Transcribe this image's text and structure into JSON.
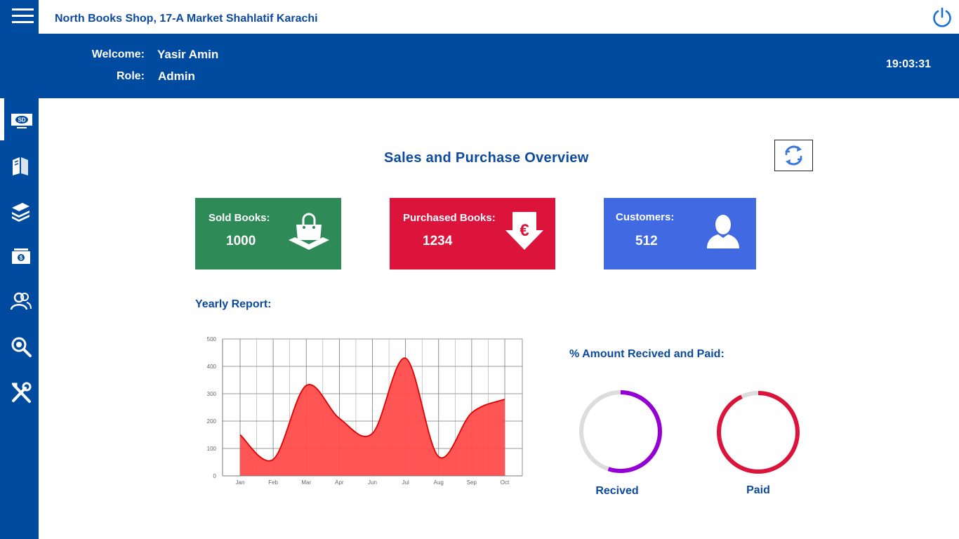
{
  "header": {
    "shop_title": "North Books Shop, 17-A Market Shahlatif Karachi",
    "welcome_label": "Welcome:",
    "welcome_value": "Yasir Amin",
    "role_label": "Role:",
    "role_value": "Admin",
    "clock": "19:03:31"
  },
  "sidebar": {
    "items": [
      {
        "icon": "sales-dashboard-icon"
      },
      {
        "icon": "books-icon"
      },
      {
        "icon": "book-stack-icon"
      },
      {
        "icon": "money-icon"
      },
      {
        "icon": "users-icon"
      },
      {
        "icon": "search-icon"
      },
      {
        "icon": "tools-icon"
      }
    ]
  },
  "main": {
    "title": "Sales and Purchase Overview",
    "cards": [
      {
        "label": "Sold Books:",
        "value": "1000",
        "color": "#2e8b57",
        "icon": "shopping-bag-icon"
      },
      {
        "label": "Purchased Books:",
        "value": "1234",
        "color": "#dc143c",
        "icon": "euro-down-arrow-icon"
      },
      {
        "label": "Customers:",
        "value": "512",
        "color": "#4169e1",
        "icon": "user-icon"
      }
    ],
    "yearly_label": "Yearly Report:",
    "percent_label": "% Amount Recived and Paid:",
    "rings": [
      {
        "label": "Recived",
        "fraction": 0.55,
        "color": "#9400d3"
      },
      {
        "label": "Paid",
        "fraction": 0.93,
        "color": "#dc143c"
      }
    ]
  },
  "chart_data": {
    "type": "area",
    "categories": [
      "Jan",
      "Feb",
      "Mar",
      "Apr",
      "Jun",
      "Jul",
      "Aug",
      "Sep",
      "Oct"
    ],
    "values": [
      150,
      60,
      330,
      210,
      155,
      430,
      70,
      230,
      280
    ],
    "yticks": [
      "0",
      "100",
      "200",
      "300",
      "400",
      "500"
    ],
    "ylim": [
      0,
      500
    ],
    "grid": true,
    "fill_color": "#ff4c4c",
    "line_color": "#e00000"
  }
}
